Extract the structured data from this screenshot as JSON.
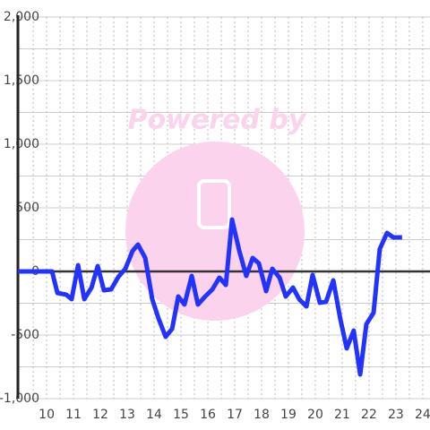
{
  "chart_data": {
    "type": "line",
    "watermark": "Powered by",
    "x": [
      8.93,
      10.2,
      10.4,
      10.73,
      10.93,
      11.17,
      11.4,
      11.67,
      11.9,
      12.13,
      12.4,
      12.67,
      12.93,
      13.2,
      13.4,
      13.67,
      13.93,
      14.17,
      14.43,
      14.67,
      14.9,
      15.13,
      15.4,
      15.63,
      15.9,
      16.17,
      16.43,
      16.67,
      16.9,
      17.17,
      17.43,
      17.67,
      17.9,
      18.17,
      18.4,
      18.67,
      18.9,
      19.17,
      19.4,
      19.67,
      19.9,
      20.17,
      20.4,
      20.67,
      20.93,
      21.17,
      21.43,
      21.67,
      21.9,
      22.17,
      22.4,
      22.67,
      22.9,
      23.23
    ],
    "series": [
      {
        "color": "#2233ff",
        "values": [
          0,
          0,
          -169,
          -183,
          -218,
          49,
          -218,
          -127,
          42,
          -148,
          -141,
          -42,
          21,
          162,
          211,
          106,
          -218,
          -373,
          -514,
          -451,
          -197,
          -260,
          -35,
          -260,
          -197,
          -141,
          -49,
          -106,
          408,
          162,
          -35,
          106,
          63,
          -155,
          21,
          -49,
          -197,
          -127,
          -218,
          -275,
          -28,
          -246,
          -239,
          -70,
          -373,
          -605,
          -465,
          -810,
          -415,
          -324,
          176,
          303,
          268,
          268
        ]
      }
    ],
    "xlim": [
      8.93,
      24.27
    ],
    "xticks": [
      10,
      11,
      12,
      13,
      14,
      15,
      16,
      17,
      18,
      19,
      20,
      21,
      22,
      23,
      24
    ],
    "ylim": [
      -1000,
      2000
    ],
    "yticks": [
      {
        "value": 2000,
        "label": "2,000"
      },
      {
        "value": 1500,
        "label": "1,500"
      },
      {
        "value": 1000,
        "label": "1,000"
      },
      500,
      0,
      -500,
      {
        "value": -1000,
        "label": "-1,000"
      }
    ],
    "grid": true
  }
}
